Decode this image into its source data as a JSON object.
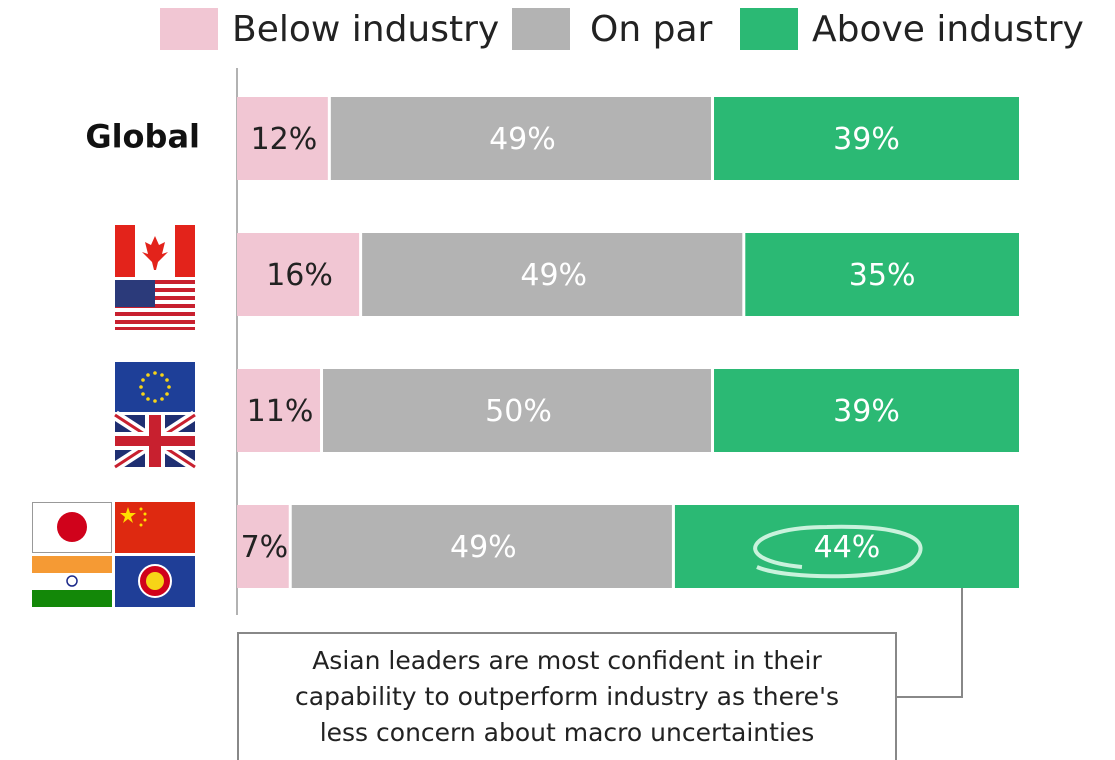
{
  "chart_data": {
    "type": "stacked-bar",
    "categories": [
      "Global",
      null,
      null,
      null
    ],
    "series": [
      {
        "name": "Below industry",
        "color": "#f1c6d3",
        "values": [
          12,
          16,
          11,
          7
        ],
        "value_labels": [
          "12%",
          "16%",
          "11%",
          "7%"
        ]
      },
      {
        "name": "On par",
        "color": "#b3b3b3",
        "values": [
          49,
          49,
          50,
          49
        ],
        "value_labels": [
          "49%",
          "49%",
          "50%",
          "49%"
        ]
      },
      {
        "name": "Above industry",
        "color": "#2bb974",
        "values": [
          39,
          35,
          39,
          44
        ],
        "value_labels": [
          "39%",
          "35%",
          "39%",
          "44%"
        ]
      }
    ],
    "xlim": [
      0,
      100
    ],
    "annotation": [
      "Asian leaders are most confident in their",
      "capability to outperform industry as there's",
      "less concern about macro uncertainties"
    ]
  }
}
